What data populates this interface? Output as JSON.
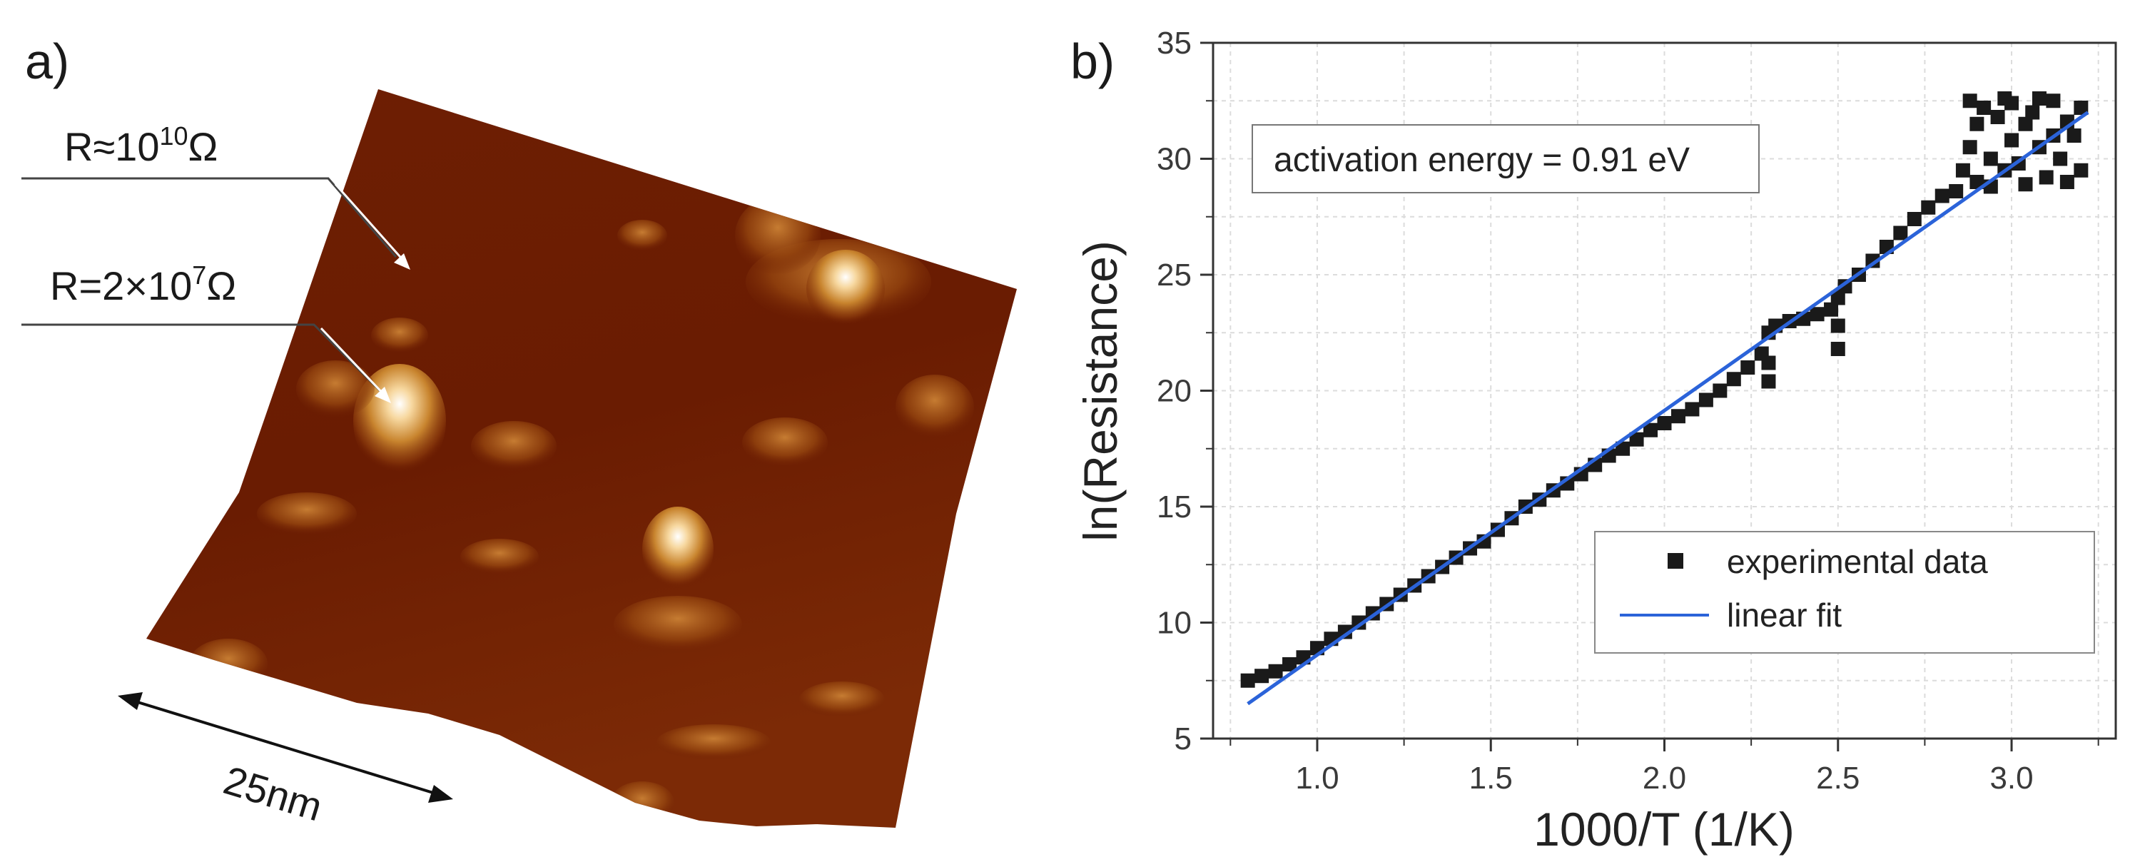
{
  "panel_a": {
    "label": "a)",
    "annotations": [
      {
        "base": "R≈10",
        "sup": "10",
        "unit": "Ω"
      },
      {
        "base": "R=2×10",
        "sup": "7",
        "unit": "Ω"
      }
    ],
    "scale_bar": "25nm"
  },
  "panel_b": {
    "label": "b)"
  },
  "chart_data": {
    "type": "scatter",
    "xlabel": "1000/T (1/K)",
    "ylabel": "ln(Resistance)",
    "xlim": [
      0.7,
      3.3
    ],
    "ylim": [
      5,
      35
    ],
    "x_ticks": [
      1.0,
      1.5,
      2.0,
      2.5,
      3.0
    ],
    "x_tick_labels": [
      "1.0",
      "1.5",
      "2.0",
      "2.5",
      "3.0"
    ],
    "y_ticks": [
      5,
      10,
      15,
      20,
      25,
      30,
      35
    ],
    "y_tick_labels": [
      "5",
      "10",
      "15",
      "20",
      "25",
      "30",
      "35"
    ],
    "grid": true,
    "legend_position": "bottom-right",
    "annotation": "activation energy = 0.91 eV",
    "series": [
      {
        "name": "experimental data",
        "marker": "square",
        "color": "#1a1a1a",
        "x": [
          0.8,
          0.84,
          0.88,
          0.92,
          0.96,
          1.0,
          1.04,
          1.08,
          1.12,
          1.16,
          1.2,
          1.24,
          1.28,
          1.32,
          1.36,
          1.4,
          1.44,
          1.48,
          1.52,
          1.56,
          1.6,
          1.64,
          1.68,
          1.72,
          1.76,
          1.8,
          1.84,
          1.88,
          1.92,
          1.96,
          2.0,
          2.04,
          2.08,
          2.12,
          2.16,
          2.2,
          2.24,
          2.28,
          2.3,
          2.3,
          2.3,
          2.32,
          2.36,
          2.4,
          2.44,
          2.48,
          2.5,
          2.5,
          2.5,
          2.52,
          2.56,
          2.6,
          2.64,
          2.68,
          2.72,
          2.76,
          2.8,
          2.84,
          2.86,
          2.88,
          2.88,
          2.9,
          2.9,
          2.92,
          2.94,
          2.94,
          2.96,
          2.98,
          2.98,
          3.0,
          3.0,
          3.02,
          3.04,
          3.04,
          3.06,
          3.08,
          3.08,
          3.1,
          3.12,
          3.12,
          3.14,
          3.16,
          3.16,
          3.18,
          3.2,
          3.2
        ],
        "y": [
          7.5,
          7.7,
          7.9,
          8.2,
          8.5,
          8.9,
          9.3,
          9.6,
          10.0,
          10.4,
          10.8,
          11.2,
          11.6,
          12.0,
          12.4,
          12.8,
          13.2,
          13.5,
          14.0,
          14.5,
          15.0,
          15.3,
          15.7,
          16.0,
          16.4,
          16.8,
          17.2,
          17.5,
          17.9,
          18.3,
          18.6,
          18.9,
          19.2,
          19.6,
          20.0,
          20.5,
          21.0,
          21.6,
          22.5,
          21.2,
          20.4,
          22.8,
          23.0,
          23.1,
          23.3,
          23.5,
          24.0,
          22.8,
          21.8,
          24.5,
          25.0,
          25.6,
          26.2,
          26.8,
          27.4,
          27.9,
          28.4,
          28.6,
          29.5,
          32.5,
          30.5,
          31.5,
          29.0,
          32.2,
          30.0,
          28.8,
          31.8,
          32.6,
          29.5,
          30.8,
          32.4,
          29.8,
          31.5,
          28.9,
          32.0,
          30.5,
          32.6,
          29.2,
          31.0,
          32.5,
          30.0,
          31.6,
          29.0,
          31.0,
          32.2,
          29.5
        ]
      },
      {
        "name": "linear fit",
        "line": true,
        "color": "#2b63d9",
        "x": [
          0.8,
          3.22
        ],
        "y": [
          6.5,
          32.0
        ]
      }
    ]
  }
}
